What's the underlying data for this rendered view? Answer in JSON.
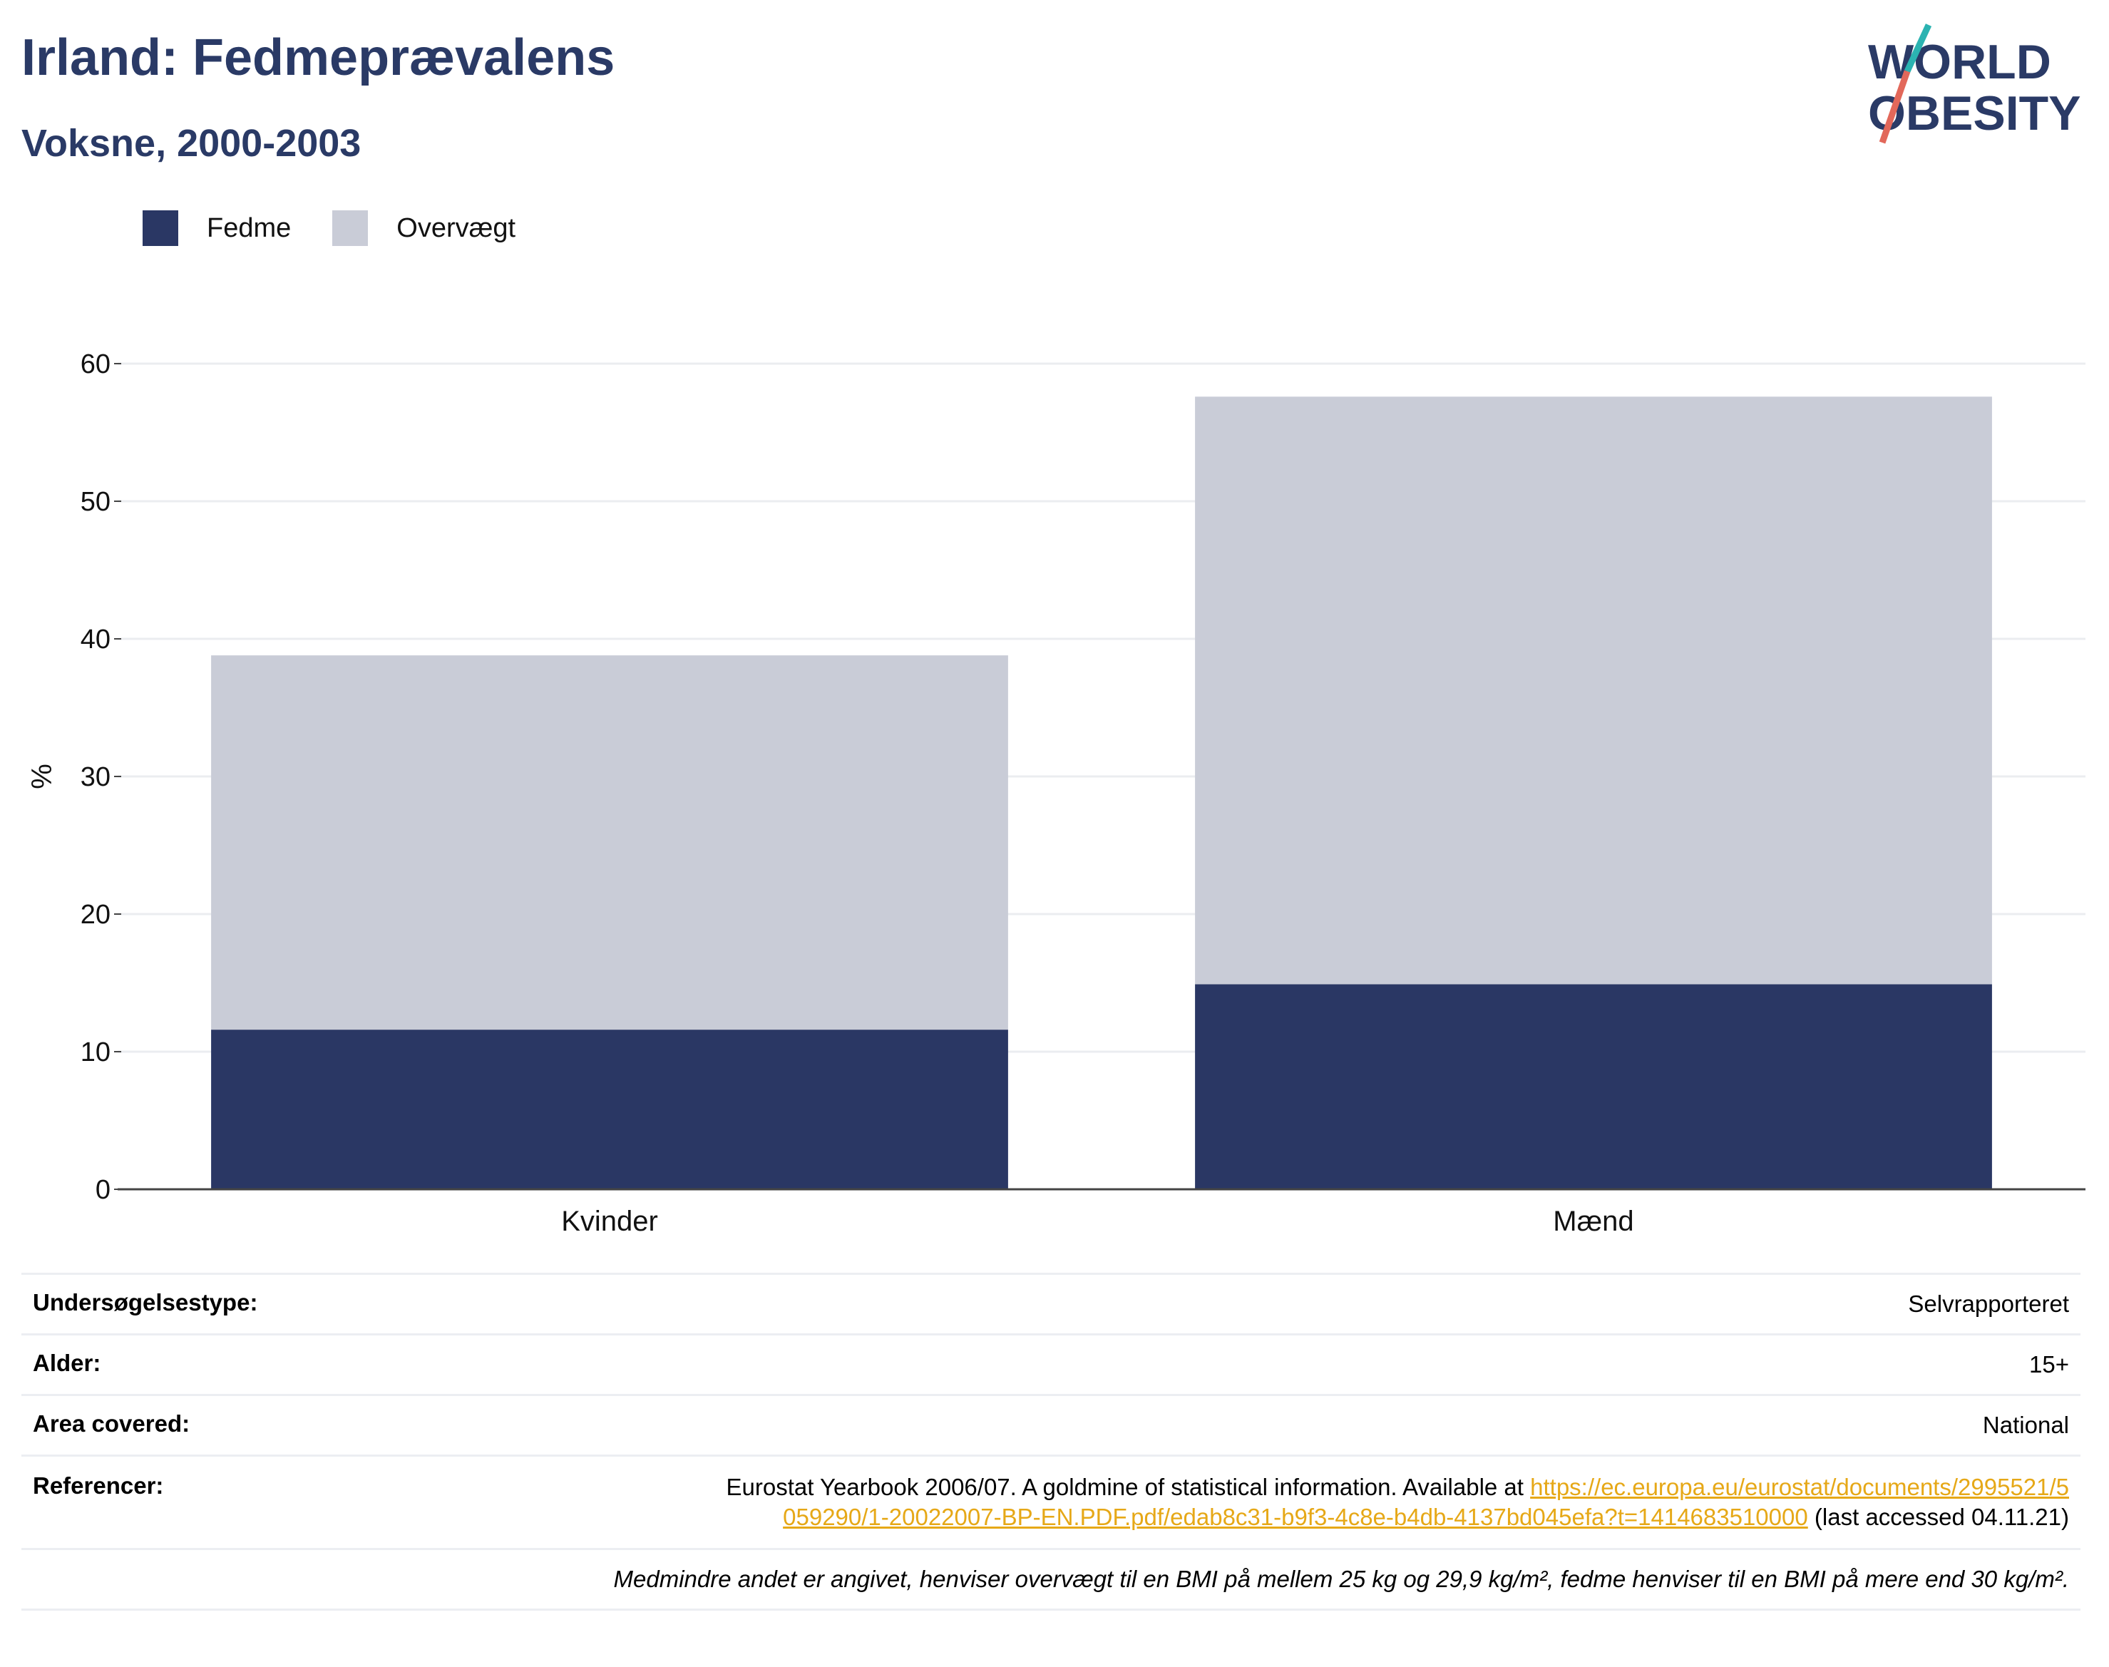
{
  "title": "Irland: Fedmeprævalens",
  "subtitle": "Voksne, 2000-2003",
  "logo": {
    "line1": "WORLD",
    "line2": "OBESITY",
    "accent_colors": [
      "#2bb3b1",
      "#e2685a"
    ]
  },
  "colors": {
    "fedme": "#2a3764",
    "overvaegt": "#c9ccd7",
    "text_dark": "#2a3a66",
    "link": "#e6a817"
  },
  "chart_data": {
    "type": "bar",
    "stacked": true,
    "categories": [
      "Kvinder",
      "Mænd"
    ],
    "series": [
      {
        "name": "Fedme",
        "values": [
          11.6,
          14.9
        ],
        "color": "#2a3764"
      },
      {
        "name": "Overvægt",
        "values": [
          27.2,
          42.7
        ],
        "color": "#c9ccd7"
      }
    ],
    "ylabel": "%",
    "xlabel": "",
    "ylim": [
      0,
      60
    ],
    "yticks": [
      0,
      10,
      20,
      30,
      40,
      50,
      60
    ],
    "grid": true,
    "legend_position": "top-left"
  },
  "meta": {
    "survey_type_label": "Undersøgelsestype:",
    "survey_type_value": "Selvrapporteret",
    "age_label": "Alder:",
    "age_value": "15+",
    "area_label": "Area covered:",
    "area_value": "National",
    "refs_label": "Referencer:",
    "refs_text": "Eurostat Yearbook 2006/07. A goldmine of statistical information. Available at",
    "refs_link": "https://ec.europa.eu/eurostat/documents/2995521/5059290/1-20022007-BP-EN.PDF.pdf/edab8c31-b9f3-4c8e-b4db-4137bd045efa?t=1414683510000",
    "refs_suffix": "(last accessed 04.11.21)",
    "note": "Medmindre andet er angivet, henviser overvægt til en BMI på mellem 25 kg og 29,9 kg/m², fedme henviser til en BMI på mere end 30 kg/m²."
  }
}
